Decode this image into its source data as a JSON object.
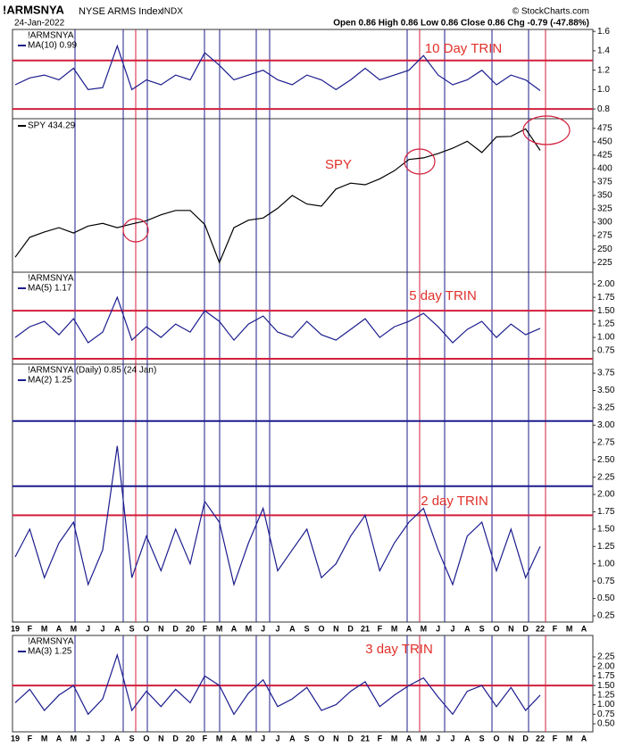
{
  "header": {
    "symbol": "!ARMSNYA",
    "name": "NYSE ARMS Index",
    "exchange": "INDX",
    "date": "24-Jan-2022",
    "quote": "Open 0.86  High 0.86  Low 0.86  Close 0.86  Chg -0.79 (-47.88%)",
    "source": "© StockCharts.com"
  },
  "chart_data": [
    {
      "type": "line",
      "legend_title": "!ARMSNYA",
      "annotation": "10 Day TRIN",
      "series": [
        {
          "name": "MA(10) 0.99",
          "color": "#1c1c8e",
          "values": [
            1.05,
            1.12,
            1.15,
            1.1,
            1.22,
            1.0,
            1.02,
            1.45,
            1.0,
            1.1,
            1.05,
            1.15,
            1.1,
            1.38,
            1.25,
            1.1,
            1.15,
            1.2,
            1.1,
            1.05,
            1.15,
            1.1,
            1.0,
            1.1,
            1.22,
            1.1,
            1.15,
            1.2,
            1.35,
            1.15,
            1.05,
            1.1,
            1.2,
            1.05,
            1.15,
            1.1,
            0.99,
            null,
            null,
            null
          ]
        }
      ],
      "ylim": [
        0.7,
        1.62
      ],
      "yticks": [
        {
          "value": 0.8,
          "label": "0.8"
        },
        {
          "value": 1,
          "label": "1.0"
        },
        1.2,
        1.4,
        1.6
      ],
      "hlines": [
        {
          "value": 1.3,
          "color": "#d21f3c"
        },
        {
          "value": 0.8,
          "color": "#d21f3c"
        }
      ]
    },
    {
      "type": "line",
      "annotation": "SPY",
      "series": [
        {
          "name": "SPY 434.29",
          "color": "#000000",
          "values": [
            235,
            272,
            282,
            290,
            280,
            293,
            298,
            290,
            297,
            303,
            314,
            322,
            322,
            296,
            225,
            290,
            304,
            308,
            326,
            350,
            334,
            330,
            362,
            373,
            370,
            381,
            396,
            417,
            420,
            428,
            438,
            451,
            430,
            459,
            460,
            474,
            434,
            null,
            null,
            null
          ]
        }
      ],
      "ylim": [
        207,
        493
      ],
      "yticks": [
        225,
        250,
        275,
        300,
        325,
        350,
        375,
        400,
        425,
        450,
        475
      ],
      "hlines": []
    },
    {
      "type": "line",
      "legend_title": "!ARMSNYA",
      "annotation": "5 day TRIN",
      "series": [
        {
          "name": "MA(5) 1.17",
          "color": "#1c1c8e",
          "values": [
            1.0,
            1.2,
            1.3,
            1.05,
            1.35,
            0.9,
            1.1,
            1.75,
            0.95,
            1.2,
            1.0,
            1.25,
            1.1,
            1.5,
            1.3,
            0.95,
            1.25,
            1.4,
            1.1,
            1.0,
            1.3,
            1.05,
            0.95,
            1.15,
            1.35,
            1.0,
            1.2,
            1.3,
            1.45,
            1.2,
            0.9,
            1.15,
            1.3,
            1.0,
            1.25,
            1.05,
            1.17,
            null,
            null,
            null
          ]
        }
      ],
      "ylim": [
        0.5,
        2.22
      ],
      "yticks": [
        0.75,
        {
          "value": 1,
          "label": "1.00"
        },
        1.25,
        {
          "value": 1.5,
          "label": "1.50"
        },
        1.75,
        {
          "value": 2,
          "label": "2.00"
        }
      ],
      "hlines": [
        {
          "value": 1.5,
          "color": "#d21f3c"
        },
        {
          "value": 0.6,
          "color": "#d21f3c"
        }
      ]
    },
    {
      "type": "line",
      "legend_title": "!ARMSNYA (Daily) 0.85 (24 Jan)",
      "annotation": "2 day TRIN",
      "categories": [
        "19",
        "F",
        "M",
        "A",
        "M",
        "J",
        "J",
        "A",
        "S",
        "O",
        "N",
        "D",
        "20",
        "F",
        "M",
        "A",
        "M",
        "J",
        "J",
        "A",
        "S",
        "O",
        "N",
        "D",
        "21",
        "F",
        "M",
        "A",
        "M",
        "J",
        "J",
        "A",
        "S",
        "O",
        "N",
        "D",
        "22",
        "F",
        "M",
        "A"
      ],
      "series": [
        {
          "name": "MA(2) 1.25",
          "color": "#1c1c8e",
          "values": [
            1.1,
            1.5,
            0.8,
            1.3,
            1.6,
            0.7,
            1.2,
            2.7,
            0.8,
            1.4,
            0.9,
            1.5,
            1.0,
            1.9,
            1.6,
            0.7,
            1.3,
            1.8,
            0.9,
            1.2,
            1.5,
            0.8,
            1.0,
            1.4,
            1.7,
            0.9,
            1.3,
            1.6,
            1.8,
            1.2,
            0.7,
            1.4,
            1.6,
            0.9,
            1.5,
            0.8,
            1.25,
            null,
            null,
            null
          ]
        }
      ],
      "ylim": [
        0.16,
        3.88
      ],
      "yticks": [
        0.25,
        {
          "value": 0.5,
          "label": "0.50"
        },
        0.75,
        {
          "value": 1,
          "label": "1.00"
        },
        1.25,
        {
          "value": 1.5,
          "label": "1.50"
        },
        1.75,
        {
          "value": 2,
          "label": "2.00"
        },
        2.25,
        {
          "value": 2.5,
          "label": "2.50"
        },
        2.75,
        {
          "value": 3,
          "label": "3.00"
        },
        3.25,
        {
          "value": 3.5,
          "label": "3.50"
        },
        3.75
      ],
      "hlines": [
        {
          "value": 3.06,
          "color": "#1c1c8e"
        },
        {
          "value": 2.12,
          "color": "#1c1c8e"
        },
        {
          "value": 1.7,
          "color": "#d21f3c"
        }
      ]
    },
    {
      "type": "line",
      "legend_title": "!ARMSNYA",
      "annotation": "3 day TRIN",
      "categories": [
        "19",
        "F",
        "M",
        "A",
        "M",
        "J",
        "J",
        "A",
        "S",
        "O",
        "N",
        "D",
        "20",
        "F",
        "M",
        "A",
        "M",
        "J",
        "J",
        "A",
        "S",
        "O",
        "N",
        "D",
        "21",
        "F",
        "M",
        "A",
        "M",
        "J",
        "J",
        "A",
        "S",
        "O",
        "N",
        "D",
        "22",
        "F",
        "M",
        "A"
      ],
      "series": [
        {
          "name": "MA(3) 1.25",
          "color": "#1c1c8e",
          "values": [
            1.05,
            1.4,
            0.85,
            1.25,
            1.5,
            0.75,
            1.15,
            2.3,
            0.85,
            1.35,
            0.95,
            1.4,
            1.05,
            1.75,
            1.5,
            0.75,
            1.3,
            1.65,
            0.95,
            1.15,
            1.45,
            0.85,
            1.0,
            1.35,
            1.6,
            0.95,
            1.25,
            1.5,
            1.7,
            1.2,
            0.75,
            1.35,
            1.5,
            0.95,
            1.45,
            0.85,
            1.25,
            null,
            null,
            null
          ]
        }
      ],
      "ylim": [
        0.29,
        2.81
      ],
      "yticks": [
        {
          "value": 0.5,
          "label": "0.50"
        },
        0.75,
        {
          "value": 1,
          "label": "1.00"
        },
        1.25,
        {
          "value": 1.5,
          "label": "1.50"
        },
        1.75,
        {
          "value": 2,
          "label": "2.00"
        },
        2.25
      ],
      "hlines": [
        {
          "value": 1.5,
          "color": "#d21f3c"
        }
      ]
    }
  ]
}
